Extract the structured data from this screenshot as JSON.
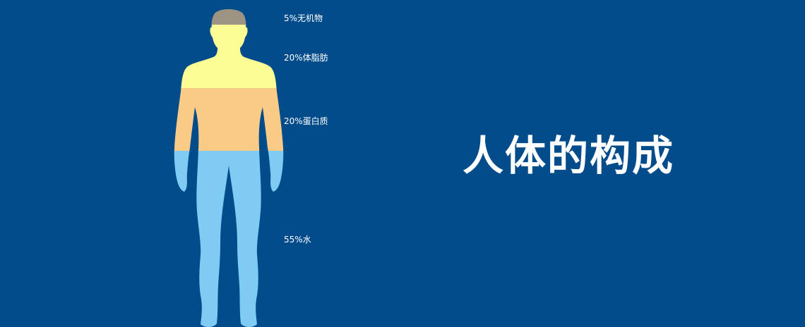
{
  "chart_data": {
    "type": "bar",
    "title": "人体的构成",
    "categories": [
      "无机物",
      "体脂肪",
      "蛋白质",
      "水"
    ],
    "values": [
      5,
      20,
      20,
      55
    ],
    "unit": "%",
    "labels": [
      "5%无机物",
      "20%体脂肪",
      "20%蛋白质",
      "55%水"
    ],
    "colors": [
      "#9e9484",
      "#fdfd96",
      "#f9cb86",
      "#80cbf4"
    ],
    "stacking": "vertical, top to bottom"
  },
  "theme": {
    "background": "#024c8c",
    "text": "#ffffff"
  }
}
